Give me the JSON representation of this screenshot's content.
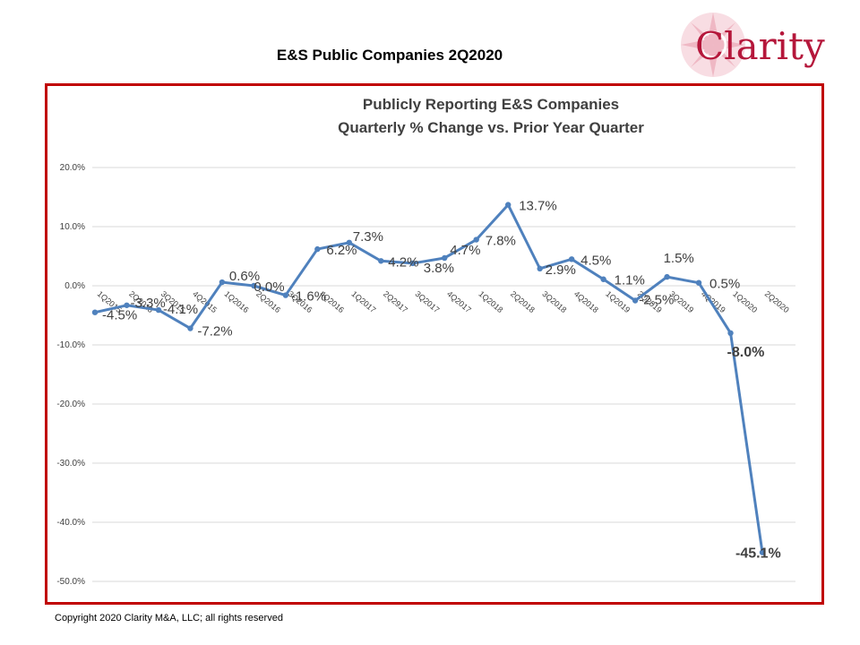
{
  "page": {
    "title": "E&S Public Companies  2Q2020",
    "copyright": "Copyright 2020 Clarity M&A, LLC;  all rights reserved"
  },
  "logo": {
    "text": "Clarity",
    "color": "#b5173b",
    "icon": "compass-rose-icon"
  },
  "colors": {
    "frame": "#c00000",
    "line": "#4f81bd",
    "grid": "#d9d9d9"
  },
  "chart_data": {
    "type": "line",
    "title": [
      "Publicly Reporting E&S Companies",
      "Quarterly % Change vs. Prior Year Quarter"
    ],
    "categories": [
      "1Q2015",
      "2Q2015",
      "3Q2015",
      "4Q2015",
      "1Q2016",
      "2Q2016",
      "3Q2016",
      "4Q2016",
      "1Q2017",
      "2Q2917",
      "3Q2017",
      "4Q2017",
      "1Q2018",
      "2Q2018",
      "3Q2018",
      "4Q2018",
      "1Q2019",
      "2Q2019",
      "3Q2019",
      "4Q2019",
      "1Q2020",
      "2Q2020"
    ],
    "series": [
      {
        "values": [
          -4.5,
          -3.3,
          -4.1,
          -7.2,
          0.6,
          0.0,
          -1.6,
          6.2,
          7.3,
          4.2,
          3.8,
          4.7,
          7.8,
          13.7,
          2.9,
          4.5,
          1.1,
          -2.5,
          1.5,
          0.5,
          -8.0,
          -45.1
        ],
        "labels": [
          "-4.5%",
          "-3.3%",
          "-4.1%",
          "-7.2%",
          "0.6%",
          "0.0%",
          "-1.6%",
          "6.2%",
          "7.3%",
          "4.2%",
          "3.8%",
          "4.7%",
          "7.8%",
          "13.7%",
          "2.9%",
          "4.5%",
          "1.1%",
          "-2.5%",
          "1.5%",
          "0.5%",
          "-8.0%",
          "-45.1%"
        ]
      }
    ],
    "yticks": [
      "20.0%",
      "10.0%",
      "0.0%",
      "-10.0%",
      "-20.0%",
      "-30.0%",
      "-40.0%",
      "-50.0%"
    ],
    "ylim": [
      -50,
      20
    ],
    "grid": true,
    "legend": "none"
  }
}
